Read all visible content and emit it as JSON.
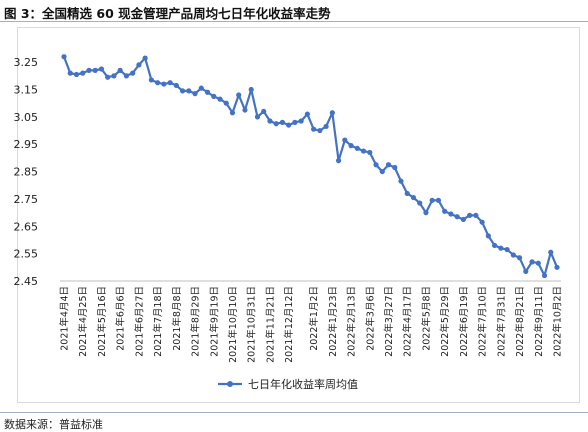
{
  "page": {
    "title": "图 3：全国精选 60 现金管理产品周均七日年化收益率走势",
    "source": "数据来源：普益标准"
  },
  "chart_data": {
    "type": "line",
    "title": "",
    "xlabel": "",
    "ylabel": "",
    "ylim": [
      2.45,
      3.3
    ],
    "yticks": [
      "2.45",
      "2.55",
      "2.65",
      "2.75",
      "2.85",
      "2.95",
      "3.05",
      "3.15",
      "3.25"
    ],
    "ytick_values": [
      2.45,
      2.55,
      2.65,
      2.75,
      2.85,
      2.95,
      3.05,
      3.15,
      3.25
    ],
    "grid": false,
    "legend": "bottom",
    "color": "#4472c4",
    "x_tick_labels": [
      "2021年4月4日",
      "2021年4月25日",
      "2021年5月16日",
      "2021年6月6日",
      "2021年6月27日",
      "2021年7月18日",
      "2021年8月8日",
      "2021年8月29日",
      "2021年9月19日",
      "2021年10月10日",
      "2021年10月31日",
      "2021年11月21日",
      "2021年12月12日",
      "2022年1月2日",
      "2022年1月23日",
      "2022年2月13日",
      "2022年3月6日",
      "2022年3月27日",
      "2022年4月17日",
      "2022年5月8日",
      "2022年5月29日",
      "2022年6月19日",
      "2022年7月10日",
      "2022年7月31日",
      "2022年8月21日",
      "2022年9月11日",
      "2022年10月2日"
    ],
    "series": [
      {
        "name": "七日年化收益率周均值",
        "values": [
          3.27,
          3.21,
          3.205,
          3.21,
          3.22,
          3.22,
          3.225,
          3.195,
          3.2,
          3.22,
          3.2,
          3.21,
          3.24,
          3.265,
          3.185,
          3.175,
          3.17,
          3.175,
          3.165,
          3.145,
          3.145,
          3.135,
          3.155,
          3.14,
          3.125,
          3.115,
          3.1,
          3.065,
          3.13,
          3.075,
          3.15,
          3.05,
          3.07,
          3.035,
          3.025,
          3.03,
          3.02,
          3.03,
          3.035,
          3.06,
          3.005,
          3.0,
          3.015,
          3.065,
          2.89,
          2.965,
          2.945,
          2.935,
          2.925,
          2.92,
          2.875,
          2.85,
          2.875,
          2.865,
          2.815,
          2.77,
          2.755,
          2.735,
          2.7,
          2.745,
          2.745,
          2.705,
          2.695,
          2.685,
          2.675,
          2.69,
          2.69,
          2.665,
          2.615,
          2.58,
          2.57,
          2.565,
          2.545,
          2.535,
          2.485,
          2.52,
          2.515,
          2.47,
          2.555,
          2.5
        ]
      }
    ]
  }
}
